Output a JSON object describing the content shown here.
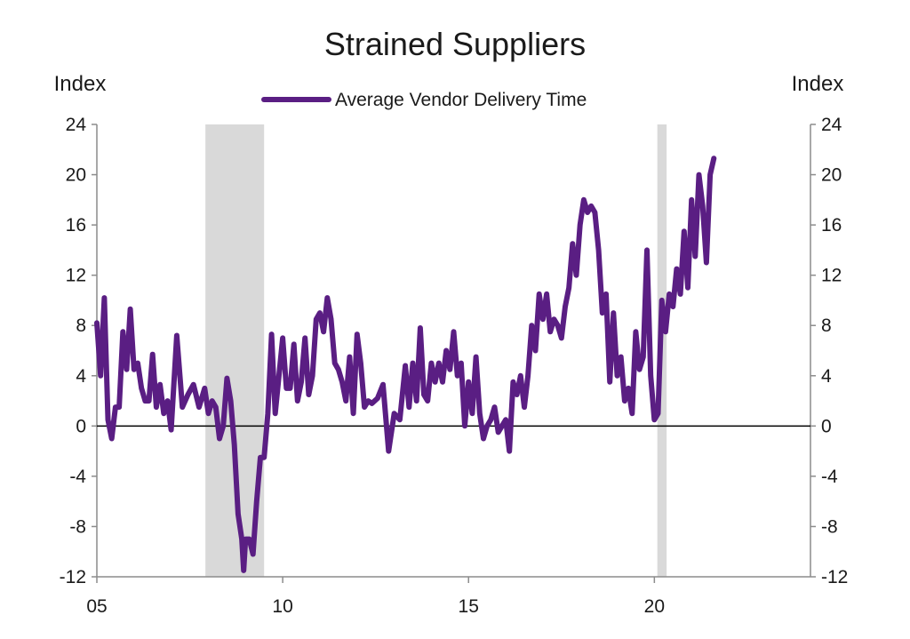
{
  "chart_data": {
    "type": "line",
    "title": "Strained Suppliers",
    "ylabel_left": "Index",
    "ylabel_right": "Index",
    "ylim": [
      -12,
      24
    ],
    "yticks": [
      -12,
      -8,
      -4,
      0,
      4,
      8,
      12,
      16,
      20,
      24
    ],
    "xlim": [
      2005,
      2024.2
    ],
    "xticks": [
      {
        "value": 2005,
        "label": "05"
      },
      {
        "value": 2010,
        "label": "10"
      },
      {
        "value": 2015,
        "label": "15"
      },
      {
        "value": 2020,
        "label": "20"
      }
    ],
    "grid": false,
    "legend_position": "top-center",
    "recessions": [
      {
        "start": 2007.92,
        "end": 2009.5
      },
      {
        "start": 2020.08,
        "end": 2020.33
      }
    ],
    "series": [
      {
        "name": "Average Vendor Delivery Time",
        "color": "#5a1e83",
        "points": [
          [
            2005.0,
            8.2
          ],
          [
            2005.1,
            4.0
          ],
          [
            2005.2,
            10.2
          ],
          [
            2005.3,
            0.5
          ],
          [
            2005.4,
            -1.0
          ],
          [
            2005.5,
            1.5
          ],
          [
            2005.6,
            1.5
          ],
          [
            2005.7,
            7.5
          ],
          [
            2005.8,
            4.5
          ],
          [
            2005.9,
            9.3
          ],
          [
            2006.0,
            4.5
          ],
          [
            2006.1,
            5.0
          ],
          [
            2006.2,
            3.0
          ],
          [
            2006.3,
            2.0
          ],
          [
            2006.4,
            2.0
          ],
          [
            2006.5,
            5.7
          ],
          [
            2006.6,
            1.5
          ],
          [
            2006.7,
            3.3
          ],
          [
            2006.8,
            1.0
          ],
          [
            2006.9,
            2.0
          ],
          [
            2007.0,
            -0.3
          ],
          [
            2007.15,
            7.2
          ],
          [
            2007.3,
            1.5
          ],
          [
            2007.45,
            2.5
          ],
          [
            2007.6,
            3.3
          ],
          [
            2007.75,
            1.5
          ],
          [
            2007.9,
            3.0
          ],
          [
            2008.0,
            1.0
          ],
          [
            2008.1,
            2.0
          ],
          [
            2008.2,
            1.5
          ],
          [
            2008.3,
            -1.0
          ],
          [
            2008.4,
            0.0
          ],
          [
            2008.5,
            3.8
          ],
          [
            2008.6,
            2.0
          ],
          [
            2008.7,
            -1.5
          ],
          [
            2008.8,
            -7.0
          ],
          [
            2008.9,
            -9.0
          ],
          [
            2008.95,
            -11.5
          ],
          [
            2009.0,
            -9.0
          ],
          [
            2009.1,
            -9.0
          ],
          [
            2009.2,
            -10.2
          ],
          [
            2009.3,
            -6.0
          ],
          [
            2009.4,
            -2.5
          ],
          [
            2009.5,
            -2.5
          ],
          [
            2009.6,
            1.0
          ],
          [
            2009.7,
            7.3
          ],
          [
            2009.8,
            1.0
          ],
          [
            2009.9,
            4.0
          ],
          [
            2010.0,
            7.0
          ],
          [
            2010.1,
            3.0
          ],
          [
            2010.2,
            3.0
          ],
          [
            2010.3,
            6.5
          ],
          [
            2010.4,
            2.0
          ],
          [
            2010.5,
            3.5
          ],
          [
            2010.6,
            7.0
          ],
          [
            2010.7,
            2.5
          ],
          [
            2010.8,
            4.0
          ],
          [
            2010.9,
            8.5
          ],
          [
            2011.0,
            9.0
          ],
          [
            2011.1,
            7.5
          ],
          [
            2011.2,
            10.2
          ],
          [
            2011.3,
            8.5
          ],
          [
            2011.4,
            5.0
          ],
          [
            2011.5,
            4.5
          ],
          [
            2011.6,
            3.5
          ],
          [
            2011.7,
            2.0
          ],
          [
            2011.8,
            5.5
          ],
          [
            2011.9,
            1.0
          ],
          [
            2012.0,
            7.3
          ],
          [
            2012.1,
            5.0
          ],
          [
            2012.2,
            1.5
          ],
          [
            2012.3,
            2.0
          ],
          [
            2012.4,
            1.8
          ],
          [
            2012.55,
            2.2
          ],
          [
            2012.7,
            3.3
          ],
          [
            2012.85,
            -2.0
          ],
          [
            2013.0,
            1.0
          ],
          [
            2013.15,
            0.5
          ],
          [
            2013.3,
            4.8
          ],
          [
            2013.4,
            1.5
          ],
          [
            2013.5,
            5.0
          ],
          [
            2013.6,
            2.0
          ],
          [
            2013.7,
            7.8
          ],
          [
            2013.8,
            2.5
          ],
          [
            2013.9,
            2.0
          ],
          [
            2014.0,
            5.0
          ],
          [
            2014.1,
            3.5
          ],
          [
            2014.2,
            5.0
          ],
          [
            2014.3,
            3.5
          ],
          [
            2014.4,
            6.0
          ],
          [
            2014.5,
            4.5
          ],
          [
            2014.6,
            7.5
          ],
          [
            2014.7,
            4.0
          ],
          [
            2014.8,
            5.0
          ],
          [
            2014.9,
            0.0
          ],
          [
            2015.0,
            3.5
          ],
          [
            2015.1,
            1.0
          ],
          [
            2015.2,
            5.5
          ],
          [
            2015.3,
            1.0
          ],
          [
            2015.4,
            -1.0
          ],
          [
            2015.5,
            0.0
          ],
          [
            2015.6,
            0.5
          ],
          [
            2015.7,
            1.5
          ],
          [
            2015.8,
            -0.5
          ],
          [
            2015.9,
            0.0
          ],
          [
            2016.0,
            0.5
          ],
          [
            2016.1,
            -2.0
          ],
          [
            2016.2,
            3.5
          ],
          [
            2016.3,
            2.5
          ],
          [
            2016.4,
            4.0
          ],
          [
            2016.5,
            1.5
          ],
          [
            2016.6,
            4.0
          ],
          [
            2016.7,
            8.0
          ],
          [
            2016.8,
            6.0
          ],
          [
            2016.9,
            10.5
          ],
          [
            2017.0,
            8.5
          ],
          [
            2017.1,
            10.5
          ],
          [
            2017.2,
            7.5
          ],
          [
            2017.3,
            8.5
          ],
          [
            2017.4,
            8.0
          ],
          [
            2017.5,
            7.0
          ],
          [
            2017.6,
            9.5
          ],
          [
            2017.7,
            11.0
          ],
          [
            2017.8,
            14.5
          ],
          [
            2017.9,
            12.0
          ],
          [
            2018.0,
            16.0
          ],
          [
            2018.1,
            18.0
          ],
          [
            2018.2,
            17.0
          ],
          [
            2018.3,
            17.5
          ],
          [
            2018.4,
            17.0
          ],
          [
            2018.5,
            14.0
          ],
          [
            2018.6,
            9.0
          ],
          [
            2018.7,
            10.5
          ],
          [
            2018.8,
            3.5
          ],
          [
            2018.9,
            9.0
          ],
          [
            2019.0,
            4.0
          ],
          [
            2019.1,
            5.5
          ],
          [
            2019.2,
            2.0
          ],
          [
            2019.3,
            3.0
          ],
          [
            2019.4,
            1.0
          ],
          [
            2019.5,
            7.5
          ],
          [
            2019.6,
            4.5
          ],
          [
            2019.7,
            5.5
          ],
          [
            2019.8,
            14.0
          ],
          [
            2019.9,
            4.0
          ],
          [
            2020.0,
            0.5
          ],
          [
            2020.1,
            1.0
          ],
          [
            2020.2,
            10.0
          ],
          [
            2020.3,
            7.5
          ],
          [
            2020.4,
            10.5
          ],
          [
            2020.5,
            9.5
          ],
          [
            2020.6,
            12.5
          ],
          [
            2020.7,
            10.5
          ],
          [
            2020.8,
            15.5
          ],
          [
            2020.9,
            11.0
          ],
          [
            2021.0,
            18.0
          ],
          [
            2021.1,
            13.5
          ],
          [
            2021.2,
            20.0
          ],
          [
            2021.3,
            17.5
          ],
          [
            2021.4,
            13.0
          ],
          [
            2021.5,
            20.0
          ],
          [
            2021.6,
            21.3
          ]
        ]
      }
    ]
  }
}
